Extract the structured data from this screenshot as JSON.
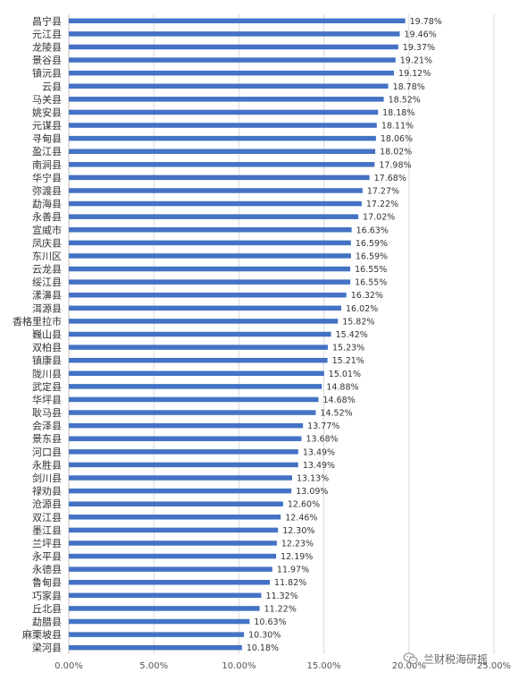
{
  "chart_data": {
    "type": "bar",
    "orientation": "horizontal",
    "categories": [
      "昌宁县",
      "元江县",
      "龙陵县",
      "景谷县",
      "镇沅县",
      "云县",
      "马关县",
      "姚安县",
      "元谋县",
      "寻甸县",
      "盈江县",
      "南涧县",
      "华宁县",
      "弥渡县",
      "勐海县",
      "永善县",
      "宣威市",
      "凤庆县",
      "东川区",
      "云龙县",
      "绥江县",
      "漾濞县",
      "洱源县",
      "香格里拉市",
      "巍山县",
      "双柏县",
      "镇康县",
      "陇川县",
      "武定县",
      "华坪县",
      "耿马县",
      "会泽县",
      "景东县",
      "河口县",
      "永胜县",
      "剑川县",
      "禄劝县",
      "沧源县",
      "双江县",
      "墨江县",
      "兰坪县",
      "永平县",
      "永德县",
      "鲁甸县",
      "巧家县",
      "丘北县",
      "勐腊县",
      "麻栗坡县",
      "梁河县"
    ],
    "values": [
      19.78,
      19.46,
      19.37,
      19.21,
      19.12,
      18.78,
      18.52,
      18.18,
      18.11,
      18.06,
      18.02,
      17.98,
      17.68,
      17.27,
      17.22,
      17.02,
      16.63,
      16.59,
      16.59,
      16.55,
      16.55,
      16.32,
      16.02,
      15.82,
      15.42,
      15.23,
      15.21,
      15.01,
      14.88,
      14.68,
      14.52,
      13.77,
      13.68,
      13.49,
      13.49,
      13.13,
      13.09,
      12.6,
      12.46,
      12.3,
      12.23,
      12.19,
      11.97,
      11.82,
      11.32,
      11.22,
      10.63,
      10.3,
      10.18
    ],
    "value_labels": [
      "19.78%",
      "19.46%",
      "19.37%",
      "19.21%",
      "19.12%",
      "18.78%",
      "18.52%",
      "18.18%",
      "18.11%",
      "18.06%",
      "18.02%",
      "17.98%",
      "17.68%",
      "17.27%",
      "17.22%",
      "17.02%",
      "16.63%",
      "16.59%",
      "16.59%",
      "16.55%",
      "16.55%",
      "16.32%",
      "16.02%",
      "15.82%",
      "15.42%",
      "15.23%",
      "15.21%",
      "15.01%",
      "14.88%",
      "14.68%",
      "14.52%",
      "13.77%",
      "13.68%",
      "13.49%",
      "13.49%",
      "13.13%",
      "13.09%",
      "12.60%",
      "12.46%",
      "12.30%",
      "12.23%",
      "12.19%",
      "11.97%",
      "11.82%",
      "11.32%",
      "11.22%",
      "10.63%",
      "10.30%",
      "10.18%"
    ],
    "xlim": [
      0,
      25
    ],
    "x_ticks": [
      0,
      5,
      10,
      15,
      20,
      25
    ],
    "x_tick_labels": [
      "0.00%",
      "5.00%",
      "10.00%",
      "15.00%",
      "20.00%",
      "25.00%"
    ],
    "grid": "vertical",
    "legend": "none",
    "title": "",
    "xlabel": "",
    "ylabel": ""
  },
  "colors": {
    "bar": "#4472C4",
    "grid": "#D9D9D9",
    "axis": "#BFBFBF"
  },
  "watermark": {
    "text": "兰财税海研摇",
    "icon": "wechat-icon"
  }
}
